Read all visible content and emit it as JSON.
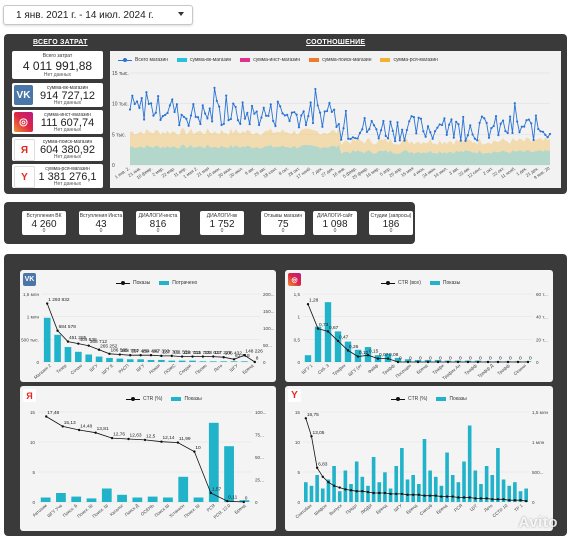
{
  "date_range": {
    "label": "1 янв. 2021 г. - 14 июл. 2024 г."
  },
  "totals_section": {
    "title": "ВСЕГО ЗАТРАТ",
    "cards": [
      {
        "label": "Всего затрат",
        "value": "4 011 991,88",
        "sub": "Нет данных",
        "icon": ""
      },
      {
        "label": "сумма-вк-магазин",
        "value": "914 727,12",
        "sub": "Нет данных",
        "icon": "vk-icon"
      },
      {
        "label": "сумма-инст-магазин",
        "value": "111 607,74",
        "sub": "Нет данных",
        "icon": "instagram-icon"
      },
      {
        "label": "сумма-поиск-магазин",
        "value": "604 380,92",
        "sub": "Нет данных",
        "icon": "yandex-icon"
      },
      {
        "label": "сумма-рся-магазин",
        "value": "1 381 276,1",
        "sub": "Нет данных",
        "icon": "yandex-browser-icon"
      }
    ]
  },
  "ratio_section": {
    "title": "СООТНОШЕНИЕ",
    "legend": [
      {
        "name": "Всего магазин",
        "color": "#2a72d4",
        "style": "line"
      },
      {
        "name": "сумма-вк-магазин",
        "color": "#25c2d9"
      },
      {
        "name": "сумма-инст-магазин",
        "color": "#e0328b"
      },
      {
        "name": "сумма-поиск-магазин",
        "color": "#f07a2c"
      },
      {
        "name": "сумма-рся-магазин",
        "color": "#f2b035"
      }
    ],
    "y_ticks": [
      "15 тыс.",
      "10 тыс.",
      "5 тыс.",
      "0"
    ],
    "x_ticks": [
      "1 янв. 2.",
      "21 янв.",
      "10 февр.",
      "2 мар.",
      "22 мар.",
      "11 апр.",
      "1 мая 2.",
      "21 мая",
      "10 июн.",
      "30 июн.",
      "20 июл.",
      "9 авг.",
      "29 авг.",
      "18 сент.",
      "8 окт.",
      "28 окт.",
      "17 нояб.",
      "7 дек.",
      "27 дек.",
      "16 янв.",
      "5 февр.",
      "25 февр.",
      "16 мар.",
      "5 апр.",
      "25 апр.",
      "15 мая",
      "4 июн.",
      "24 июн.",
      "14 июл.",
      "3 авг.",
      "23 авг.",
      "12 сент.",
      "2 окт.",
      "22 окт.",
      "11 нояб.",
      "1 дек.",
      "21 дек.",
      "9 янв. 20"
    ]
  },
  "stats": [
    {
      "label": "Вступления ВК",
      "value": "4 260",
      "sub": "0"
    },
    {
      "label": "Вступления Инста",
      "value": "43",
      "sub": "0"
    },
    {
      "label": "ДИАЛОГИ-инста",
      "value": "816",
      "sub": "0"
    },
    {
      "label": "ДИАЛОГИ-вк",
      "value": "1 752",
      "sub": "0"
    },
    {
      "label": "Отзывы магазин",
      "value": "75",
      "sub": "0"
    },
    {
      "label": "ДИАЛОГИ-сайт",
      "value": "1 098",
      "sub": "0"
    },
    {
      "label": "Студии (запросы)",
      "value": "186",
      "sub": "0"
    }
  ],
  "colors": {
    "line": "#111111",
    "bar": "#21b3c9",
    "dark_panel": "#3a3a3a"
  },
  "charts": {
    "vk": {
      "legend_line": "Показы",
      "legend_bar": "Потрачено",
      "icon": "vk-icon",
      "left_ticks": [
        "1,5 млн",
        "1 млн",
        "500 тыс.",
        "0"
      ],
      "right_ticks": [
        "200...",
        "150...",
        "100...",
        "50...",
        "0"
      ],
      "x_labels": [
        "Магазин 2",
        "Тизер",
        "Сочаю",
        "ШГУ",
        "ШГУ Е",
        "РАСП",
        "ШГУ",
        "Новая",
        "ПОЖС",
        "Скидки",
        "Промо",
        "Лето",
        "ШГУ",
        "Бренд"
      ],
      "line_labels": [
        "1 293 832",
        "684 578",
        "451 285",
        "404 538",
        "368 712",
        "265 252",
        "186 565",
        "168 754",
        "157 486",
        "154 482",
        "147 393",
        "137 701",
        "131 559",
        "118 703",
        "115 779",
        "123 637",
        "117 229",
        "106 432",
        "61 718",
        "148 226",
        "8"
      ]
    },
    "inst": {
      "legend_line": "CTR (все)",
      "legend_bar": "Показы",
      "icon": "instagram-icon",
      "left_ticks": [
        "1,5",
        "1",
        "0,5",
        "0"
      ],
      "right_ticks": [
        "60 т...",
        "40 т...",
        "20 т...",
        "0"
      ],
      "x_labels": [
        "ШГУ 1",
        "Себ. З",
        "Трафик",
        "ШГУ (от",
        "Файф",
        "Трафф",
        "Посещен",
        "Бренд",
        "Трафи",
        "Трафик Ан",
        "Трафф",
        "Трафф Д",
        "Трафф",
        "Сезонн"
      ],
      "line_labels": [
        "1,28",
        "0,73",
        "0,67",
        "0,47",
        "0,26",
        "0,12",
        "0,15",
        "0,07",
        "0,08",
        "0",
        "0",
        "0",
        "0",
        "0",
        "0",
        "0",
        "0",
        "0",
        "0",
        "0",
        "0",
        "0",
        "0"
      ]
    },
    "ya": {
      "legend_line": "CTR (%)",
      "legend_bar": "Показы",
      "icon": "yandex-icon",
      "left_ticks": [
        "15",
        "10",
        "5",
        "0"
      ],
      "right_ticks": [
        "100...",
        "75...",
        "50...",
        "25...",
        "0"
      ],
      "x_labels": [
        "Автозим",
        "ШГУ Уче",
        "Поиск. Б",
        "Поиск. Ш",
        "Поиск. Ш",
        "Каталог",
        "Поиск Д",
        "ОСЕНЬ",
        "Поиск Ш",
        "Устанкон",
        "Поиск. Ш",
        "РСЯ",
        "РСЯ. 12.0",
        "Бренд"
      ],
      "line_labels": [
        "17,48",
        "15,13",
        "14,48",
        "13,81",
        "12,76",
        "12,63",
        "12,5",
        "12,14",
        "11,99",
        "10",
        "1,57",
        "0,11",
        "0"
      ]
    },
    "rsya": {
      "legend_line": "CTR (%)",
      "legend_bar": "Показы",
      "icon": "yandex-browser-icon",
      "left_ticks": [
        "15",
        "10",
        "5",
        "0"
      ],
      "right_ticks": [
        "1,5 млн",
        "1 млн",
        "500...",
        "0"
      ],
      "x_labels": [
        "Снятобан",
        "Шифон",
        "Выпуск",
        "Предл",
        "ЛЮДИ",
        "Бренд",
        "ШГУ",
        "Бренд",
        "Снятоб",
        "Бренд",
        "РСЯ",
        "ЦУГ",
        "Лето",
        "ССТИ 10",
        "ТР 1"
      ],
      "line_labels": [
        "16,75",
        "13,05",
        "6,83"
      ]
    }
  },
  "watermark": "Avito"
}
